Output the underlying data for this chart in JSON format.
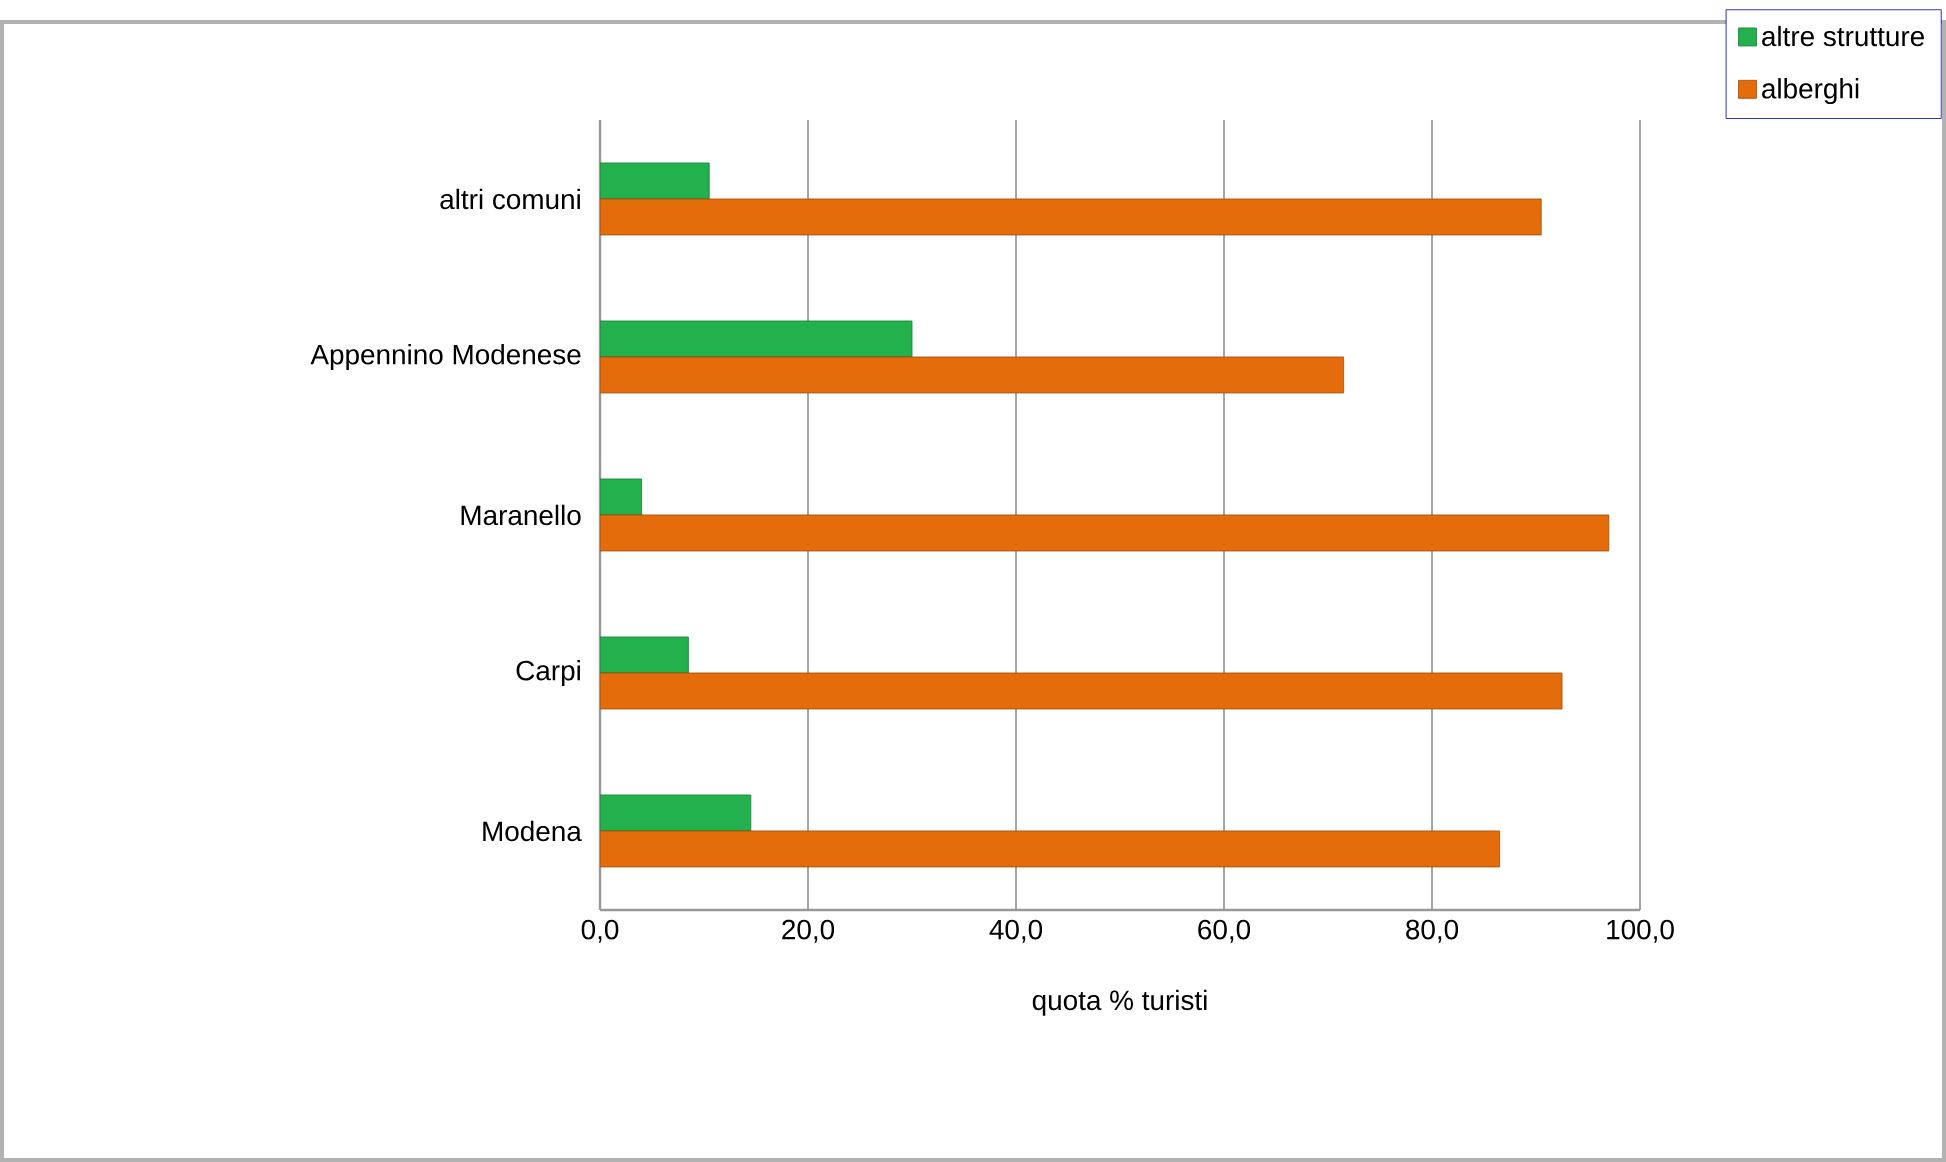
{
  "chart_data": {
    "type": "bar",
    "orientation": "horizontal",
    "xlabel": "quota % turisti",
    "categories": [
      "altri comuni",
      "Appennino Modenese",
      "Maranello",
      "Carpi",
      "Modena"
    ],
    "series": [
      {
        "name": "altre strutture",
        "color": "#22b14c",
        "values": [
          10.5,
          30,
          4,
          8.5,
          14.5
        ]
      },
      {
        "name": "alberghi",
        "color": "#e46c0a",
        "values": [
          90.5,
          71.5,
          97,
          92.5,
          86.5
        ]
      }
    ],
    "xlim": [
      0,
      100
    ],
    "xticks": [
      {
        "value": 0,
        "label": "0,0"
      },
      {
        "value": 20,
        "label": "20,0"
      },
      {
        "value": 40,
        "label": "40,0"
      },
      {
        "value": 60,
        "label": "60,0"
      },
      {
        "value": 80,
        "label": "80,0"
      },
      {
        "value": 100,
        "label": "100,0"
      }
    ],
    "grid": "x",
    "legend": "top right"
  }
}
